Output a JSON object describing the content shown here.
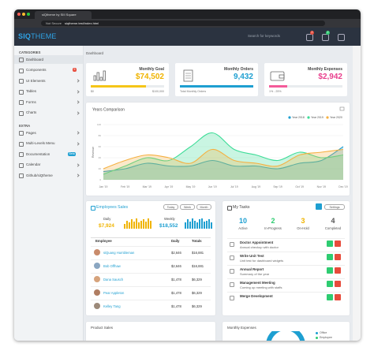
{
  "browser": {
    "tab_title": "siQtheme by SIII Square",
    "security": "Not Secure",
    "url": "siqtheme.test/index.html"
  },
  "header": {
    "logo_bold": "SIQ",
    "logo_light": "THEME",
    "search_placeholder": "Search for keywords",
    "badges": [
      "2",
      "2"
    ]
  },
  "sidebar": {
    "sections": [
      {
        "title": "CATEGORIES",
        "items": [
          {
            "label": "Dashboard"
          },
          {
            "label": "Components",
            "badge": "5"
          },
          {
            "label": "UI Elements"
          },
          {
            "label": "Tables"
          },
          {
            "label": "Forms"
          },
          {
            "label": "Charts"
          }
        ]
      },
      {
        "title": "EXTRA",
        "items": [
          {
            "label": "Pages"
          },
          {
            "label": "Multi-Levels Menu"
          },
          {
            "label": "Documentation",
            "badge": "Beta"
          },
          {
            "label": "Calendar"
          },
          {
            "label": "Github/siQtheme"
          }
        ]
      }
    ]
  },
  "breadcrumb": "Dashboard",
  "stat_cards": [
    {
      "title": "Monthly Goal",
      "value": "$74,502",
      "progress": 75,
      "color": "#f0b400",
      "bar_color": "#f5c518",
      "footer_left": "$0",
      "footer_right": "$100,000"
    },
    {
      "title": "Monthly Orders",
      "value": "9,432",
      "progress": 100,
      "color": "#1e9fd1",
      "bar_color": "#1e9fd1",
      "footer_left": "Total Monthly Orders"
    },
    {
      "title": "Monthly Expenses",
      "value": "$2,942",
      "progress": 25,
      "color": "#e83e8c",
      "bar_color": "#f45b9a",
      "footer_left": "1% - 25%"
    }
  ],
  "chart_data": {
    "type": "area",
    "title": "Years Comparison",
    "y_label": "Revenue",
    "categories": [
      "Jan '19",
      "Feb '19",
      "Mar '19",
      "Apr '19",
      "May '19",
      "Jun '19",
      "Jul '19",
      "Aug '19",
      "Sep '19",
      "Oct '19",
      "Nov '19",
      "Dec '19"
    ],
    "series": [
      {
        "name": "Year 2018",
        "color": "#1e9fd1",
        "values": [
          15,
          20,
          30,
          25,
          25,
          35,
          25,
          25,
          20,
          30,
          35,
          60
        ]
      },
      {
        "name": "Year 2019",
        "color": "#3ddc97",
        "values": [
          10,
          25,
          40,
          35,
          60,
          85,
          55,
          45,
          35,
          50,
          40,
          45
        ]
      },
      {
        "name": "Year 2020",
        "color": "#f5b041",
        "values": [
          20,
          35,
          45,
          40,
          30,
          55,
          35,
          30,
          25,
          45,
          50,
          55
        ]
      }
    ],
    "ylim": [
      0,
      100
    ],
    "yticks": [
      0,
      20,
      40,
      60,
      80,
      100
    ],
    "grid": true
  },
  "employees_sales": {
    "title": "Employees Sales",
    "buttons": [
      "Today",
      "Week",
      "Month"
    ],
    "daily": {
      "label": "Daily",
      "value": "$7,924",
      "color": "#f0b400",
      "bars": [
        5,
        8,
        6,
        9,
        7,
        10,
        6,
        8,
        9,
        7,
        10,
        8
      ]
    },
    "weekly": {
      "label": "Weekly",
      "value": "$18,552",
      "color": "#1e9fd1",
      "bars": [
        6,
        9,
        7,
        10,
        8,
        6,
        9,
        10,
        7,
        8,
        9,
        6
      ]
    },
    "columns": [
      "Employee",
      "Daily",
      "Totals"
    ],
    "rows": [
      [
        "siQuang Humbleman",
        "$2,646",
        "$16,881"
      ],
      [
        "Bob Offhaw",
        "$2,646",
        "$16,881"
      ],
      [
        "Dana Sausch",
        "$1,478",
        "$6,329"
      ],
      [
        "Pear Appleton",
        "$1,478",
        "$6,329"
      ],
      [
        "Kelley Tang",
        "$1,478",
        "$6,329"
      ]
    ]
  },
  "tasks": {
    "title": "My Tasks",
    "settings": "Settings",
    "stats": [
      {
        "value": "10",
        "label": "Active",
        "color": "#1e9fd1"
      },
      {
        "value": "2",
        "label": "In-Progress",
        "color": "#2ecc71"
      },
      {
        "value": "3",
        "label": "On-Hold",
        "color": "#f0b400"
      },
      {
        "value": "4",
        "label": "Completed",
        "color": "#555"
      }
    ],
    "items": [
      {
        "title": "Doctor Appointment",
        "subtitle": "Annual checkup with doctor"
      },
      {
        "title": "Write Unit Test",
        "subtitle": "Unit test for dashboard widgets"
      },
      {
        "title": "Annual Report",
        "subtitle": "Summary of the year"
      },
      {
        "title": "Management Meeting",
        "subtitle": "Coming up meeting with staffs"
      },
      {
        "title": "Merge Development"
      }
    ]
  },
  "bottom": {
    "product_sales": "Product Sales",
    "monthly_expenses": "Monthly Expenses",
    "legend": [
      "Office",
      "Employee"
    ]
  }
}
